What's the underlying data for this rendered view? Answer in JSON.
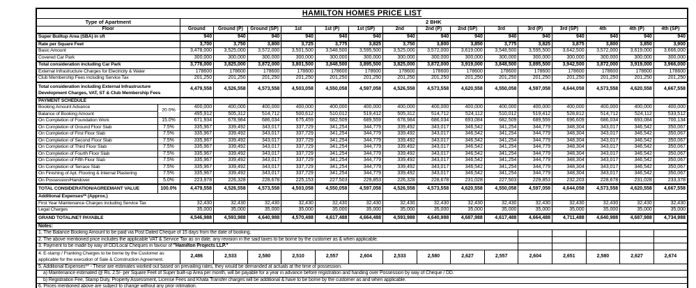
{
  "title": "HAMILTON HOMES PRICE LIST",
  "table": {
    "apartment_type_label": "Type of Apartment",
    "apartment_type": "2 BHK",
    "floor_label": "Floor",
    "columns": [
      "Ground",
      "Ground (P)",
      "Ground (SP)",
      "1st",
      "1st (P)",
      "1st (SP)",
      "2nd",
      "2nd (P)",
      "2nd (SP)",
      "3rd",
      "3rd (P)",
      "3rd (SP)",
      "4th",
      "4th (P)",
      "4th (SP)"
    ],
    "shared": {
      "v940": [
        "940",
        "940",
        "940",
        "940",
        "940",
        "940",
        "940",
        "940",
        "940",
        "940",
        "940",
        "940",
        "940",
        "940",
        "940"
      ],
      "v300k": [
        "300,000",
        "300,000",
        "300,000",
        "300,000",
        "300,000",
        "300,000",
        "300,000",
        "300,000",
        "300,000",
        "300,000",
        "300,000",
        "300,000",
        "300,000",
        "300,000",
        "300,000"
      ],
      "v178600": [
        "178600",
        "178600",
        "178600",
        "178600",
        "178600",
        "178600",
        "178600",
        "178600",
        "178600",
        "178600",
        "178600",
        "178600",
        "178600",
        "178600",
        "178600"
      ],
      "v201250": [
        "201,250",
        "201,250",
        "201,250",
        "201,250",
        "201,250",
        "201,250",
        "201,250",
        "201,250",
        "201,250",
        "201,250",
        "201,250",
        "201,250",
        "201,250",
        "201,250",
        "201,250"
      ],
      "v400k": [
        "400,000",
        "400,000",
        "400,000",
        "400,000",
        "400,000",
        "400,000",
        "400,000",
        "400,000",
        "400,000",
        "400,000",
        "400,000",
        "400,000",
        "400,000",
        "400,000",
        "400,000"
      ],
      "vslab": [
        "335,967",
        "339,492",
        "343,017",
        "337,729",
        "341,254",
        "344,779",
        "339,492",
        "343,017",
        "346,542",
        "341,254",
        "344,779",
        "348,304",
        "343,017",
        "346,542",
        "350,067"
      ],
      "vtotal": [
        "4,479,558",
        "4,526,558",
        "4,573,558",
        "4,503,058",
        "4,550,058",
        "4,597,058",
        "4,526,558",
        "4,573,558",
        "4,620,558",
        "4,550,058",
        "4,597,058",
        "4,644,058",
        "4,573,558",
        "4,620,558",
        "4,667,558"
      ],
      "v32430": [
        "32,430",
        "32,430",
        "32,430",
        "32,430",
        "32,430",
        "32,430",
        "32,430",
        "32,430",
        "32,430",
        "32,430",
        "32,430",
        "32,430",
        "32,430",
        "32,430",
        "32,430"
      ],
      "v35000": [
        "35,000",
        "35,000",
        "35,000",
        "35,000",
        "35,000",
        "35,000",
        "35,000",
        "35,000",
        "35,000",
        "35,000",
        "35,000",
        "35,000",
        "35,000",
        "35,000",
        "35,000"
      ]
    },
    "rows": [
      {
        "kind": "values",
        "name": "row-sba",
        "cls": "thick",
        "label": "Super Builtup Area (SBA) in sft",
        "label_bold": true,
        "bold": true,
        "values_ref": "v940"
      },
      {
        "kind": "values",
        "name": "row-rate",
        "cls": "thick",
        "label": "Rate per Square Feet",
        "label_bold": true,
        "bold": true,
        "values": [
          "3,700",
          "3,750",
          "3,800",
          "3,725",
          "3,775",
          "3,825",
          "3,750",
          "3,800",
          "3,850",
          "3,775",
          "3,825",
          "3,875",
          "3,800",
          "3,850",
          "3,900"
        ]
      },
      {
        "kind": "values",
        "name": "row-basic-amount",
        "label": "Basic Amount",
        "values": [
          "3,478,000",
          "3,525,000",
          "3,572,000",
          "3,501,500",
          "3,548,500",
          "3,595,500",
          "3,525,000",
          "3,572,000",
          "3,619,000",
          "3,548,500",
          "3,595,500",
          "3,642,500",
          "3,572,000",
          "3,619,000",
          "3,666,000"
        ]
      },
      {
        "kind": "values",
        "name": "row-car-park",
        "label": "Covered Car Park",
        "values_ref": "v300k"
      },
      {
        "kind": "values",
        "name": "row-total-carpark",
        "cls": "thick",
        "label": "Total consideration including Car Park",
        "label_bold": true,
        "bold": true,
        "values": [
          "3,778,000",
          "3,825,000",
          "3,872,000",
          "3,801,500",
          "3,848,500",
          "3,895,500",
          "3,825,000",
          "3,872,000",
          "3,919,000",
          "3,848,500",
          "3,895,500",
          "3,942,500",
          "3,872,000",
          "3,919,000",
          "3,966,000"
        ]
      },
      {
        "kind": "values",
        "name": "row-ext-infra",
        "label": "External Infrastructure Charges for Electricity & Water",
        "values_ref": "v178600"
      },
      {
        "kind": "values",
        "name": "row-club-fees",
        "label": "Club Membership Fees including Service Tax",
        "values_ref": "v201250"
      },
      {
        "kind": "values",
        "name": "row-total-ext",
        "cls": "thick tall",
        "label": "Total consideration including External Infrastructure",
        "label2": "Development Charges, VAT, ST & Club Membership Fees",
        "label_bold": true,
        "bold": true,
        "values_ref": "vtotal"
      },
      {
        "kind": "section",
        "name": "row-payment-schedule",
        "cls": "thick",
        "label": "PAYMENT SCHEDULE"
      },
      {
        "kind": "pay",
        "name": "row-booking-advance",
        "label": "Booking Amount Advance",
        "pct": "20.0%",
        "pct_rowspan": 2,
        "values_ref": "v400k"
      },
      {
        "kind": "pay",
        "name": "row-balance-booking",
        "label": "Balance of Booking Amount",
        "pct_skip": true,
        "values": [
          "495,912",
          "505,312",
          "514,712",
          "500,612",
          "510,012",
          "519,412",
          "505,312",
          "514,712",
          "524,112",
          "510,012",
          "519,412",
          "528,812",
          "514,712",
          "524,112",
          "533,512"
        ]
      },
      {
        "kind": "pay",
        "name": "row-foundation",
        "label": "On Completion of Foundation Work",
        "pct": "15.0%",
        "values": [
          "671,934",
          "678,984",
          "686,034",
          "675,459",
          "682,509",
          "689,559",
          "678,984",
          "686,034",
          "693,084",
          "682,509",
          "689,559",
          "696,609",
          "686,034",
          "693,084",
          "700,134"
        ]
      },
      {
        "kind": "pay",
        "name": "row-ground-slab",
        "label": "On Completion of Ground Floor Slab",
        "pct": "7.5%",
        "values_ref": "vslab"
      },
      {
        "kind": "pay",
        "name": "row-first-slab",
        "label": "On Completion of First Floor Slab",
        "pct": "7.5%",
        "values_ref": "vslab"
      },
      {
        "kind": "pay",
        "name": "row-second-slab",
        "label": "On Completion of Second Floor Slab",
        "pct": "7.5%",
        "values_ref": "vslab"
      },
      {
        "kind": "pay",
        "name": "row-third-slab",
        "label": "On Completion of Third Floor Slab",
        "pct": "7.5%",
        "values_ref": "vslab"
      },
      {
        "kind": "pay",
        "name": "row-fourth-slab",
        "label": "On Completion of Fourth Floor Slab",
        "pct": "7.5%",
        "values_ref": "vslab"
      },
      {
        "kind": "pay",
        "name": "row-fifth-slab",
        "label": "On Completion of Fifth Floor Slab",
        "pct": "7.5%",
        "values_ref": "vslab"
      },
      {
        "kind": "pay",
        "name": "row-terrace-slab",
        "label": "On Completion of Terrace Slab",
        "pct": "7.5%",
        "values_ref": "vslab"
      },
      {
        "kind": "pay",
        "name": "row-finishing",
        "label": "On Finishing of Apt. Flooring & Internal Plastering",
        "pct": "7.5%",
        "values_ref": "vslab"
      },
      {
        "kind": "pay",
        "name": "row-possession",
        "label": "On Possession/Handover",
        "pct": "5.0%",
        "values": [
          "223,978",
          "226,328",
          "228,678",
          "225,153",
          "227,503",
          "229,853",
          "226,328",
          "228,678",
          "231,028",
          "227,503",
          "229,853",
          "232,203",
          "228,678",
          "231,028",
          "233,378"
        ]
      },
      {
        "kind": "pay",
        "name": "row-total-consideration",
        "cls": "thick h12",
        "label": "TOTAL CONSIDERATION/AGREEMANT VALUE",
        "label_bold": true,
        "label_center": true,
        "pct": "100.0%",
        "pct_bold": true,
        "bold": true,
        "values_ref": "vtotal"
      },
      {
        "kind": "section-left",
        "name": "row-additional-expenses",
        "label": "Additional Expenses** (Approx.)"
      },
      {
        "kind": "values",
        "name": "row-maintenance",
        "label": "First Year Maintenance Charges including Service Tax",
        "values_ref": "v32430"
      },
      {
        "kind": "values",
        "name": "row-legal-charges",
        "label": "Legal Charges",
        "values_ref": "v35000"
      },
      {
        "kind": "values",
        "name": "row-grand-total",
        "cls": "thick h11",
        "label": "GRAND TOTAL/NET PAYABLE",
        "label_bold": true,
        "label_center": true,
        "bold": true,
        "values": [
          "4,546,988",
          "4,593,988",
          "4,640,988",
          "4,570,488",
          "4,617,488",
          "4,664,488",
          "4,593,988",
          "4,640,988",
          "4,687,988",
          "4,617,488",
          "4,664,488",
          "4,711,488",
          "4,640,988",
          "4,687,988",
          "4,734,988"
        ]
      },
      {
        "kind": "full",
        "name": "row-notes-header",
        "cls": "thick",
        "label": "Notes:",
        "bold": true
      },
      {
        "kind": "note",
        "name": "row-note-1",
        "label": "1. The Balance Booking Amount to be paid via Post Dated Cheque of 15 days from the date of booking."
      },
      {
        "kind": "note",
        "name": "row-note-2",
        "label": "2. The above mentioned price includes the applicable VAT & Service Tax as on date, any revision in the said taxes to be borne by the customer as & when applicable."
      },
      {
        "kind": "note",
        "name": "row-note-3",
        "label": "3. Payment to be made by way of DD/Local Cheques in favour of ",
        "bold_suffix": "\"Hamilton Projects LLP.\""
      },
      {
        "kind": "estamp",
        "name": "row-note-4-estamp",
        "cls": "h20",
        "label": "4.  E-stamp / Franking Charges to be borne by the Customer as",
        "label2": "applicable for the execution of Sale & Construction Agreement.",
        "values": [
          "2,486",
          "2,533",
          "2,580",
          "2,510",
          "2,557",
          "2,604",
          "2,533",
          "2,580",
          "2,627",
          "2,557",
          "2,604",
          "2,651",
          "2,580",
          "2,627",
          "2,674"
        ]
      },
      {
        "kind": "full",
        "name": "row-note-5",
        "label": "5. Additional Expenses** - These are estimates worked out based on prevailing rates, they would be demanded at actuals at the time of possession."
      },
      {
        "kind": "full",
        "name": "row-note-5a",
        "indent": true,
        "label": "a) Maintenance estimated @ Rs. 2.5/- per Square Feet of Super built-up Area per month, will be payable for a year in advance before registration and handing over Possession by way of Cheque / DD."
      },
      {
        "kind": "full",
        "name": "row-note-5b",
        "indent": true,
        "label": "b) Registration Fee, Stamp Duty, Property Assessment, License Fees and Khata Transfer charges will be additional & have to be borne by the customer as and when applicable."
      },
      {
        "kind": "full",
        "name": "row-note-6",
        "label": "6. Prices mentioned above are subject to change without any prior intimation."
      }
    ]
  }
}
